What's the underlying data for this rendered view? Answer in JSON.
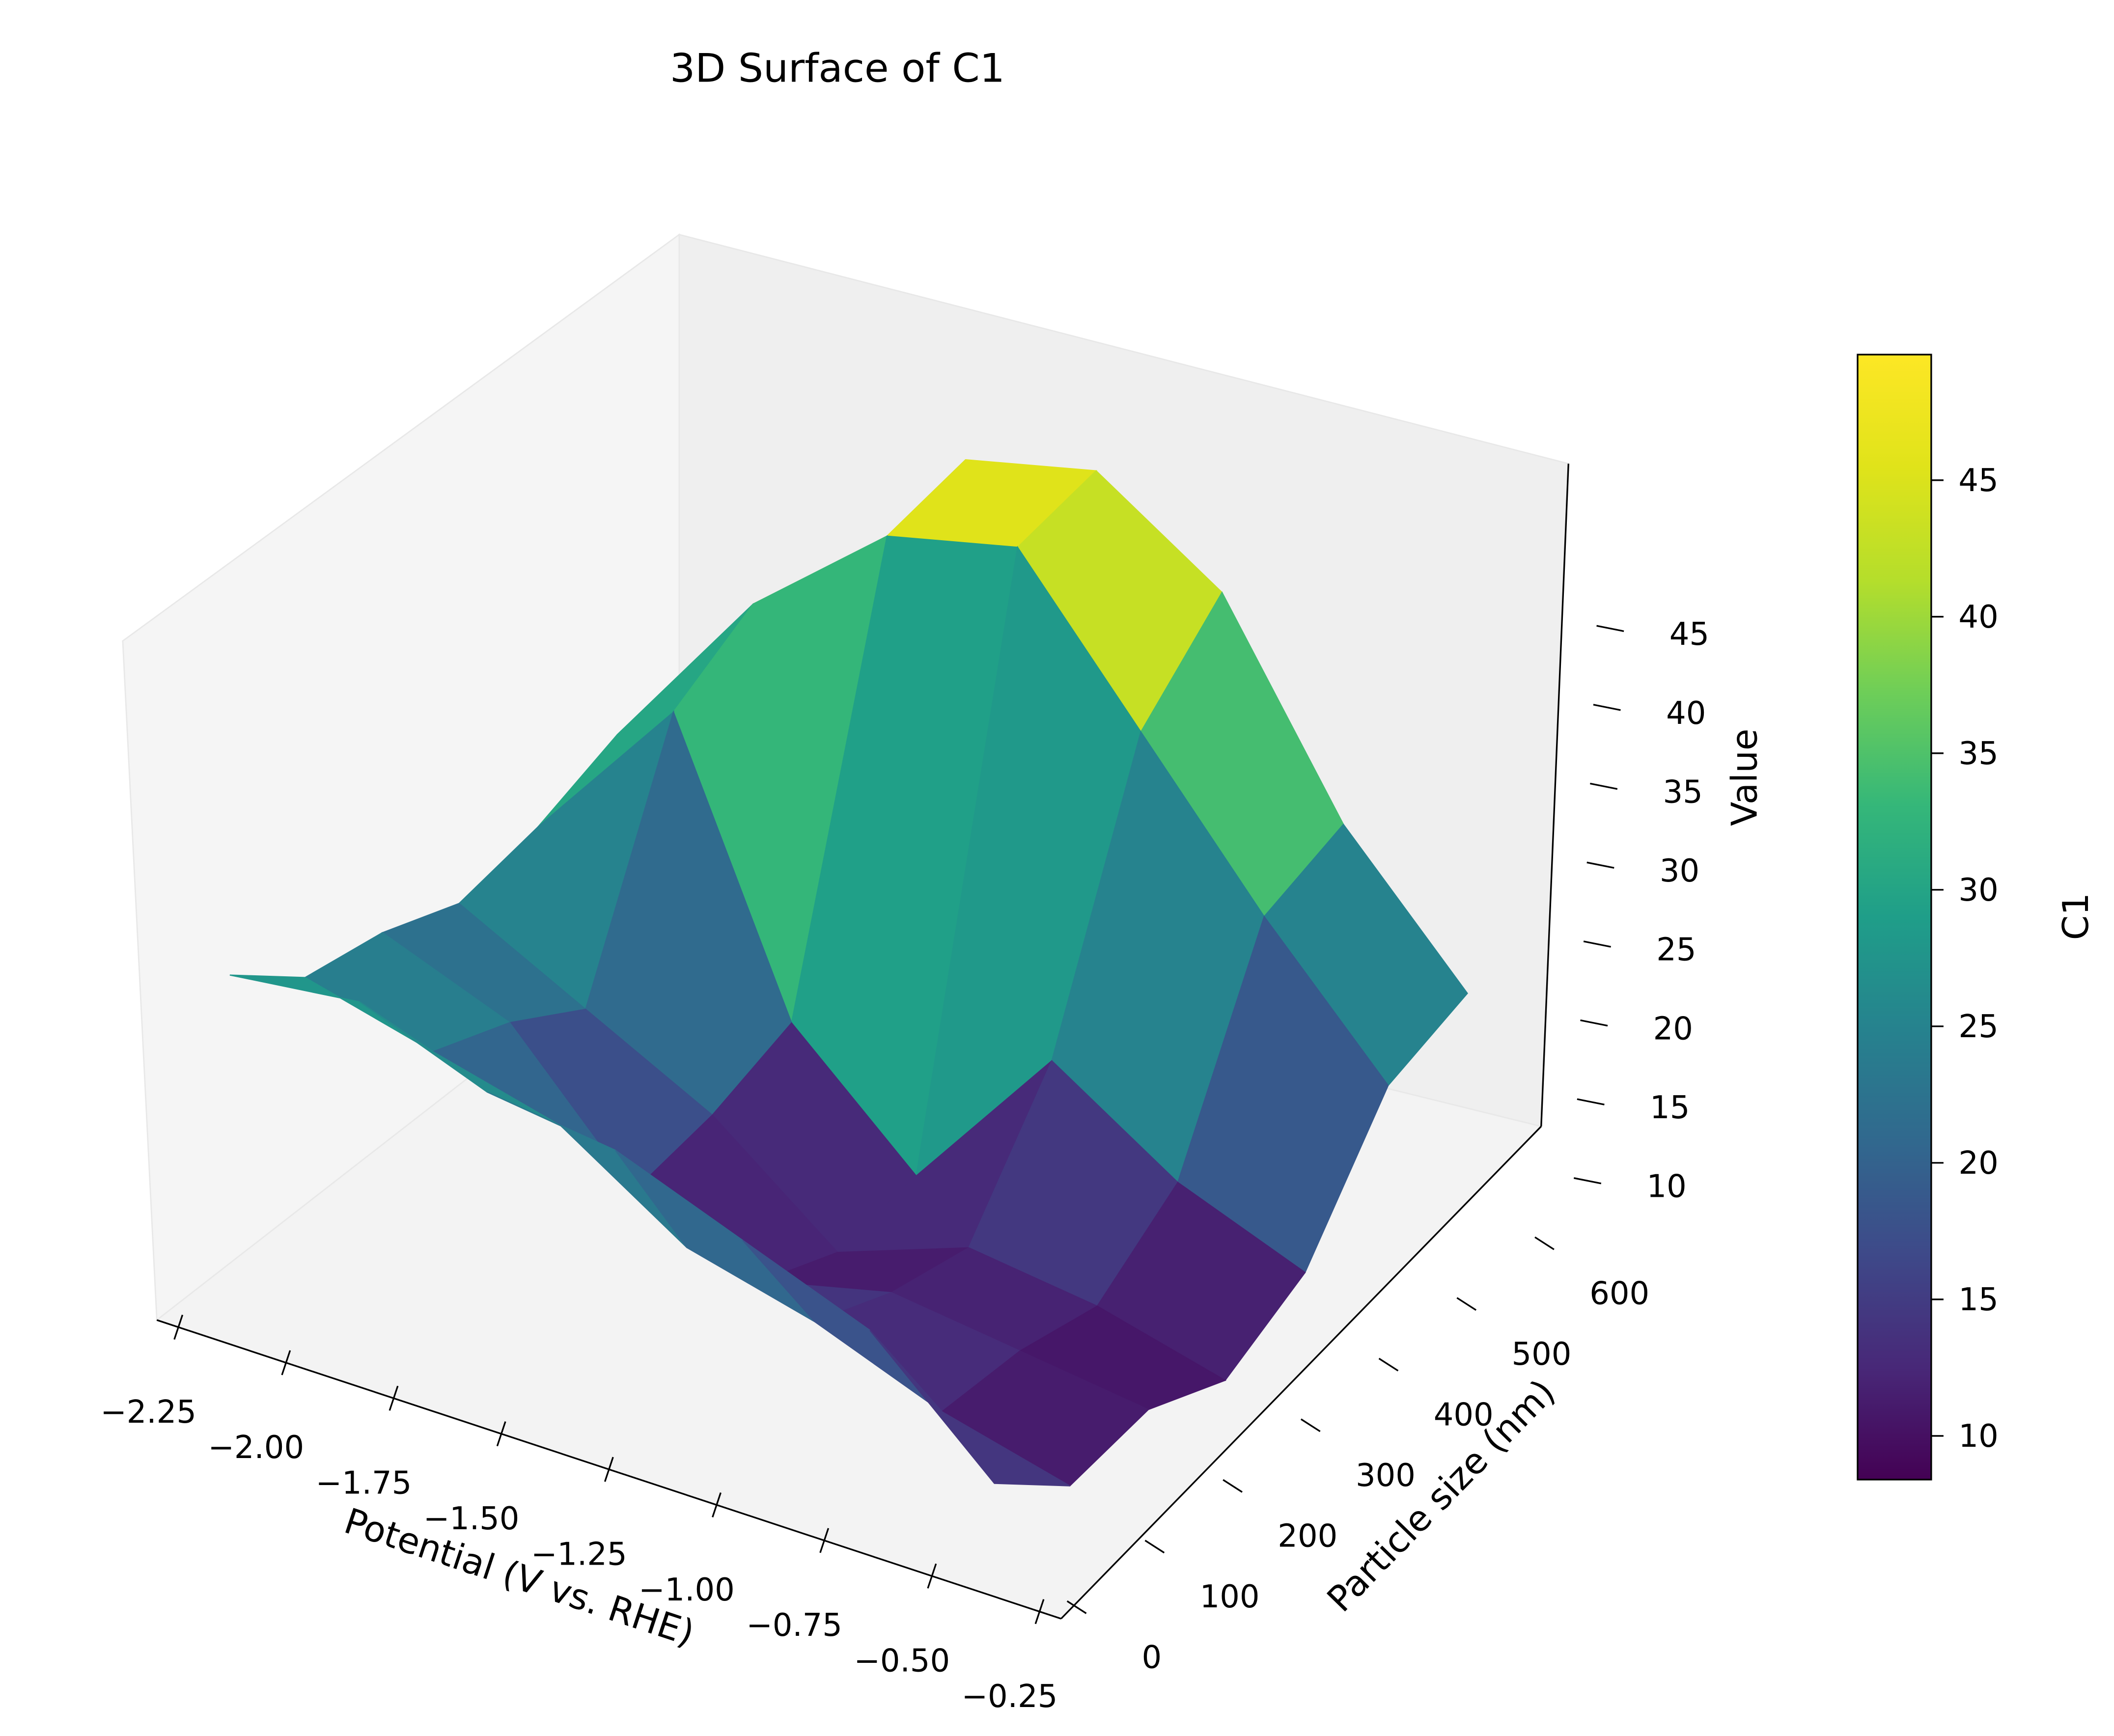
{
  "chart_data": {
    "type": "surface3d",
    "title": "3D Surface of C1",
    "xlabel": "Potential (V vs. RHE)",
    "ylabel": "Particle size (nm)",
    "zlabel": "Value",
    "x_ticks": [
      "−2.25",
      "−2.00",
      "−1.75",
      "−1.50",
      "−1.25",
      "−1.00",
      "−0.75",
      "−0.50",
      "−0.25"
    ],
    "y_ticks": [
      "0",
      "100",
      "200",
      "300",
      "400",
      "500",
      "600"
    ],
    "z_ticks": [
      "10",
      "15",
      "20",
      "25",
      "30",
      "35",
      "40",
      "45"
    ],
    "xlim": [
      -2.3,
      -0.2
    ],
    "ylim": [
      -20,
      650
    ],
    "zlim": [
      8,
      50
    ],
    "x": [
      -2.2,
      -1.9,
      -1.6,
      -1.3,
      -1.0,
      -0.7,
      -0.4
    ],
    "y": [
      0,
      100,
      200,
      300,
      400,
      500,
      600
    ],
    "z": [
      [
        30,
        31,
        28,
        27,
        24,
        21,
        14
      ],
      [
        26,
        24,
        22,
        17,
        15,
        12,
        10
      ],
      [
        25,
        22,
        14,
        11,
        13,
        12,
        11
      ],
      [
        23,
        19,
        15,
        9,
        12,
        11,
        9
      ],
      [
        24,
        34,
        17,
        10,
        20,
        15,
        12
      ],
      [
        26,
        37,
        44,
        46,
        37,
        28,
        20
      ],
      [
        25,
        26,
        45,
        47,
        42,
        30,
        22
      ]
    ],
    "colormap": "viridis",
    "colorbar": {
      "label": "C1",
      "ticks": [
        "10",
        "15",
        "20",
        "25",
        "30",
        "35",
        "40",
        "45"
      ],
      "range": [
        8.4,
        49.6
      ]
    },
    "grid": false
  }
}
